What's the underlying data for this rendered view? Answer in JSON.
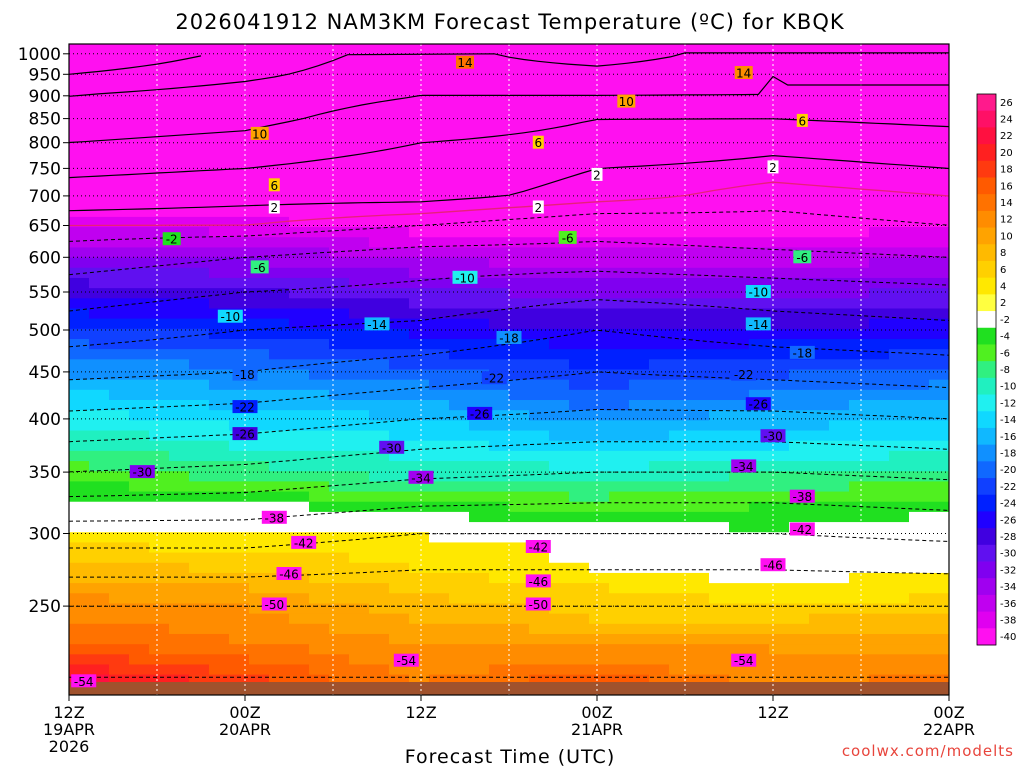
{
  "title": "2026041912 NAM3KM Forecast Temperature (ºC) for KBQK",
  "xlabel": "Forecast Time (UTC)",
  "credit": "coolwx.com/modelts",
  "chart_data": {
    "type": "contour",
    "title": "2026041912 NAM3KM Forecast Temperature (ºC) for KBQK",
    "xlabel": "Forecast Time (UTC)",
    "ylabel": "",
    "y_scale": "log-pressure (hPa), inverted",
    "ylim": [
      1025,
      200
    ],
    "y_ticks": [
      250,
      300,
      350,
      400,
      450,
      500,
      550,
      600,
      650,
      700,
      750,
      800,
      850,
      900,
      950,
      1000
    ],
    "x_unit": "forecast hour",
    "xlim": [
      0,
      60
    ],
    "x_ticks": [
      {
        "hour": 0,
        "lines": [
          "12Z",
          "19APR",
          "2026"
        ]
      },
      {
        "hour": 12,
        "lines": [
          "00Z",
          "20APR"
        ]
      },
      {
        "hour": 24,
        "lines": [
          "12Z"
        ]
      },
      {
        "hour": 36,
        "lines": [
          "00Z",
          "21APR"
        ]
      },
      {
        "hour": 48,
        "lines": [
          "12Z"
        ]
      },
      {
        "hour": 60,
        "lines": [
          "00Z",
          "22APR"
        ]
      }
    ],
    "colorbar": {
      "labels": [
        "26",
        "24",
        "22",
        "20",
        "18",
        "16",
        "14",
        "12",
        "10",
        "8",
        "6",
        "4",
        "2",
        "-2",
        "-4",
        "-6",
        "-8",
        "-10",
        "-12",
        "-14",
        "-16",
        "-18",
        "-20",
        "-22",
        "-24",
        "-26",
        "-28",
        "-30",
        "-32",
        "-34",
        "-36",
        "-38",
        "-40"
      ],
      "colors": [
        "#ff1a8c",
        "#ff1066",
        "#ff1040",
        "#ff2020",
        "#ff3a10",
        "#ff5a00",
        "#ff7200",
        "#ff8c00",
        "#ffa300",
        "#ffba00",
        "#ffd000",
        "#ffe800",
        "#ffff40",
        "#ffffff",
        "#20e020",
        "#50f020",
        "#30f080",
        "#20f0c0",
        "#20f0f0",
        "#10d8ff",
        "#10b8ff",
        "#1090ff",
        "#1068ff",
        "#1040ff",
        "#0020ff",
        "#2000ff",
        "#4000e0",
        "#6010f0",
        "#8000f0",
        "#a000f0",
        "#c000f0",
        "#e000f0",
        "#ff10f0"
      ]
    },
    "profile_fields": [
      {
        "pressure": 1000,
        "temps": [
          22,
          17,
          12,
          17,
          11,
          14
        ]
      },
      {
        "pressure": 950,
        "temps": [
          18,
          15,
          11,
          12,
          10,
          11
        ]
      },
      {
        "pressure": 900,
        "temps": [
          14,
          12,
          10,
          10,
          10,
          9
        ]
      },
      {
        "pressure": 850,
        "temps": [
          12,
          11,
          8,
          6,
          6,
          7
        ]
      },
      {
        "pressure": 800,
        "temps": [
          10,
          9,
          6,
          5,
          3,
          4
        ]
      },
      {
        "pressure": 750,
        "temps": [
          7,
          6,
          4,
          2,
          1,
          2
        ]
      },
      {
        "pressure": 700,
        "temps": [
          4,
          3,
          3,
          1,
          -1,
          0
        ]
      },
      {
        "pressure": 650,
        "temps": [
          0,
          0,
          -2,
          -4,
          -3,
          -2
        ]
      },
      {
        "pressure": 600,
        "temps": [
          -4,
          -6,
          -8,
          -8,
          -7,
          -6
        ]
      },
      {
        "pressure": 550,
        "temps": [
          -8,
          -10,
          -11,
          -13,
          -12,
          -11
        ]
      },
      {
        "pressure": 500,
        "temps": [
          -12,
          -14,
          -15,
          -18,
          -16,
          -15
        ]
      },
      {
        "pressure": 450,
        "temps": [
          -17,
          -18,
          -20,
          -22,
          -21,
          -20
        ]
      },
      {
        "pressure": 400,
        "temps": [
          -23,
          -24,
          -26,
          -27,
          -27,
          -26
        ]
      },
      {
        "pressure": 350,
        "temps": [
          -30,
          -31,
          -33,
          -34,
          -34,
          -33
        ]
      },
      {
        "pressure": 300,
        "temps": [
          -40,
          -40,
          -42,
          -42,
          -42,
          -41
        ]
      },
      {
        "pressure": 250,
        "temps": [
          -50,
          -50,
          -50,
          -50,
          -50,
          -50
        ]
      },
      {
        "pressure": 200,
        "temps": [
          -55,
          -55,
          -55,
          -55,
          -55,
          -55
        ]
      }
    ],
    "contour_labels": [
      {
        "text": "-54",
        "hour": 1,
        "pressure": 207
      },
      {
        "text": "-54",
        "hour": 23,
        "pressure": 218
      },
      {
        "text": "-54",
        "hour": 46,
        "pressure": 218
      },
      {
        "text": "-50",
        "hour": 14,
        "pressure": 251
      },
      {
        "text": "-50",
        "hour": 32,
        "pressure": 251
      },
      {
        "text": "-46",
        "hour": 15,
        "pressure": 271
      },
      {
        "text": "-46",
        "hour": 32,
        "pressure": 266
      },
      {
        "text": "-46",
        "hour": 48,
        "pressure": 277
      },
      {
        "text": "-42",
        "hour": 16,
        "pressure": 293
      },
      {
        "text": "-42",
        "hour": 32,
        "pressure": 290
      },
      {
        "text": "-42",
        "hour": 50,
        "pressure": 303
      },
      {
        "text": "-38",
        "hour": 14,
        "pressure": 312
      },
      {
        "text": "-38",
        "hour": 50,
        "pressure": 329
      },
      {
        "text": "-34",
        "hour": 24,
        "pressure": 345
      },
      {
        "text": "-34",
        "hour": 46,
        "pressure": 355
      },
      {
        "text": "-30",
        "hour": 5,
        "pressure": 350
      },
      {
        "text": "-30",
        "hour": 22,
        "pressure": 372
      },
      {
        "text": "-30",
        "hour": 48,
        "pressure": 383
      },
      {
        "text": "-26",
        "hour": 12,
        "pressure": 385
      },
      {
        "text": "-26",
        "hour": 28,
        "pressure": 405
      },
      {
        "text": "-26",
        "hour": 47,
        "pressure": 415
      },
      {
        "text": "-22",
        "hour": 12,
        "pressure": 412
      },
      {
        "text": "-22",
        "hour": 29,
        "pressure": 443
      },
      {
        "text": "-22",
        "hour": 46,
        "pressure": 447
      },
      {
        "text": "-18",
        "hour": 12,
        "pressure": 447
      },
      {
        "text": "-18",
        "hour": 30,
        "pressure": 490
      },
      {
        "text": "-18",
        "hour": 50,
        "pressure": 472
      },
      {
        "text": "-14",
        "hour": 21,
        "pressure": 507
      },
      {
        "text": "-14",
        "hour": 47,
        "pressure": 507
      },
      {
        "text": "-10",
        "hour": 11,
        "pressure": 517
      },
      {
        "text": "-10",
        "hour": 27,
        "pressure": 570
      },
      {
        "text": "-10",
        "hour": 47,
        "pressure": 550
      },
      {
        "text": "-6",
        "hour": 13,
        "pressure": 585
      },
      {
        "text": "-6",
        "hour": 34,
        "pressure": 630
      },
      {
        "text": "-6",
        "hour": 50,
        "pressure": 600
      },
      {
        "text": "-2",
        "hour": 7,
        "pressure": 628
      },
      {
        "text": "2",
        "hour": 14,
        "pressure": 680
      },
      {
        "text": "2",
        "hour": 32,
        "pressure": 680
      },
      {
        "text": "2",
        "hour": 36,
        "pressure": 738
      },
      {
        "text": "2",
        "hour": 48,
        "pressure": 752
      },
      {
        "text": "6",
        "hour": 14,
        "pressure": 719
      },
      {
        "text": "6",
        "hour": 32,
        "pressure": 800
      },
      {
        "text": "6",
        "hour": 50,
        "pressure": 845
      },
      {
        "text": "10",
        "hour": 13,
        "pressure": 818
      },
      {
        "text": "10",
        "hour": 38,
        "pressure": 887
      },
      {
        "text": "14",
        "hour": 27,
        "pressure": 978
      },
      {
        "text": "14",
        "hour": 46,
        "pressure": 953
      }
    ]
  }
}
